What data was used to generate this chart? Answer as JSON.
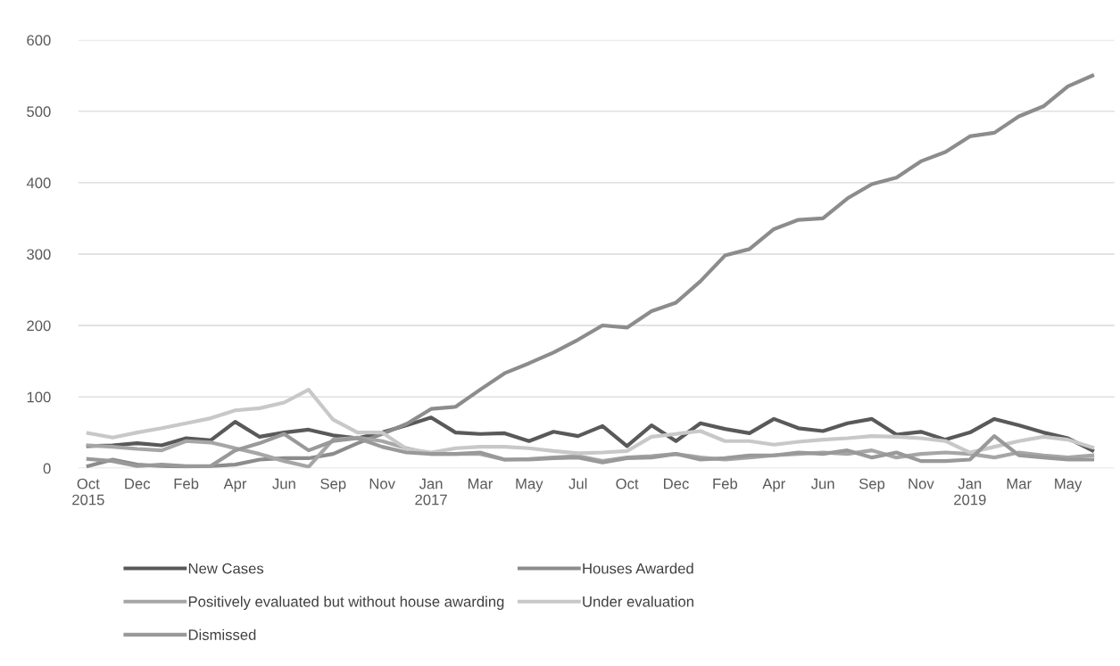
{
  "chart_data": {
    "type": "line",
    "categories": [
      "Oct\n2015",
      null,
      "Dec",
      null,
      "Feb",
      null,
      "Apr",
      null,
      "Jun",
      null,
      "Sep",
      null,
      "Nov",
      null,
      "Jan\n2017",
      null,
      "Mar",
      null,
      "May",
      null,
      "Jul",
      null,
      "Oct",
      null,
      "Dec",
      null,
      "Feb",
      null,
      "Apr",
      null,
      "Jun",
      null,
      "Sep",
      null,
      "Nov",
      null,
      "Jan\n2019",
      null,
      "Mar",
      null,
      "May",
      null
    ],
    "series": [
      {
        "name": "New Cases",
        "color": "#595959",
        "values": [
          31,
          32,
          35,
          32,
          42,
          39,
          65,
          44,
          50,
          54,
          46,
          42,
          50,
          60,
          71,
          50,
          48,
          49,
          38,
          51,
          45,
          59,
          31,
          60,
          38,
          63,
          55,
          49,
          69,
          56,
          52,
          63,
          69,
          47,
          51,
          40,
          50,
          69,
          60,
          50,
          42,
          25
        ]
      },
      {
        "name": "Houses Awarded",
        "color": "#8c8c8c",
        "values": [
          3,
          12,
          5,
          3,
          2,
          3,
          5,
          12,
          14,
          14,
          20,
          35,
          48,
          62,
          83,
          86,
          110,
          133,
          147,
          162,
          180,
          200,
          197,
          220,
          232,
          262,
          298,
          307,
          335,
          348,
          350,
          378,
          398,
          407,
          430,
          443,
          465,
          470,
          493,
          507,
          535,
          550
        ]
      },
      {
        "name": "Positively evaluated but without house awarding",
        "color": "#a6a6a6",
        "values": [
          32,
          30,
          27,
          25,
          38,
          36,
          28,
          20,
          10,
          2,
          40,
          43,
          38,
          28,
          20,
          20,
          20,
          12,
          13,
          15,
          17,
          10,
          15,
          17,
          20,
          15,
          12,
          15,
          18,
          20,
          22,
          20,
          25,
          15,
          20,
          22,
          20,
          15,
          22,
          18,
          15,
          18
        ]
      },
      {
        "name": "Under evaluation",
        "color": "#c8c8c8",
        "values": [
          49,
          43,
          50,
          56,
          63,
          70,
          81,
          84,
          92,
          110,
          68,
          50,
          50,
          27,
          22,
          28,
          30,
          30,
          28,
          24,
          21,
          22,
          24,
          44,
          48,
          52,
          38,
          38,
          33,
          37,
          40,
          42,
          45,
          44,
          42,
          38,
          22,
          30,
          38,
          44,
          40,
          29
        ]
      },
      {
        "name": "Dismissed",
        "color": "#999999",
        "values": [
          13,
          10,
          3,
          5,
          3,
          3,
          25,
          35,
          48,
          25,
          38,
          42,
          30,
          22,
          20,
          20,
          22,
          12,
          12,
          14,
          15,
          8,
          14,
          15,
          20,
          12,
          14,
          18,
          18,
          22,
          20,
          25,
          15,
          22,
          10,
          10,
          12,
          45,
          18,
          15,
          12,
          12
        ]
      }
    ],
    "ylim": [
      0,
      600
    ],
    "yticks": [
      0,
      100,
      200,
      300,
      400,
      500,
      600
    ],
    "grid": "y",
    "legend": "bottom",
    "marker": "none",
    "line_style": "solid"
  }
}
